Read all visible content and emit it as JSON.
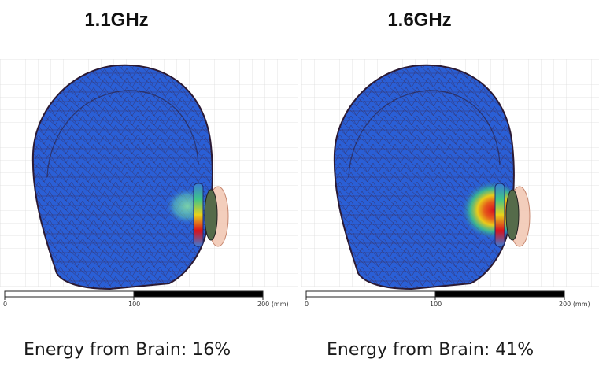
{
  "panels": [
    {
      "frequency": "1.1GHz",
      "energy_label": "Energy from Brain: 16%",
      "scale": {
        "labels": [
          "0",
          "100",
          "200 (mm)"
        ]
      }
    },
    {
      "frequency": "1.6GHz",
      "energy_label": "Energy from Brain: 41%",
      "scale": {
        "labels": [
          "0",
          "100",
          "200 (mm)"
        ]
      }
    }
  ],
  "colors": {
    "head_mesh": "#2a5fd6",
    "mesh_lines": "#3a1f3c",
    "hotspot_center": "#d8121c",
    "hotspot_mid": "#eacb1a",
    "hotspot_edge": "#3ec48a",
    "antenna_disc": "#f2c9b5",
    "grid": "#dcdcdc"
  }
}
